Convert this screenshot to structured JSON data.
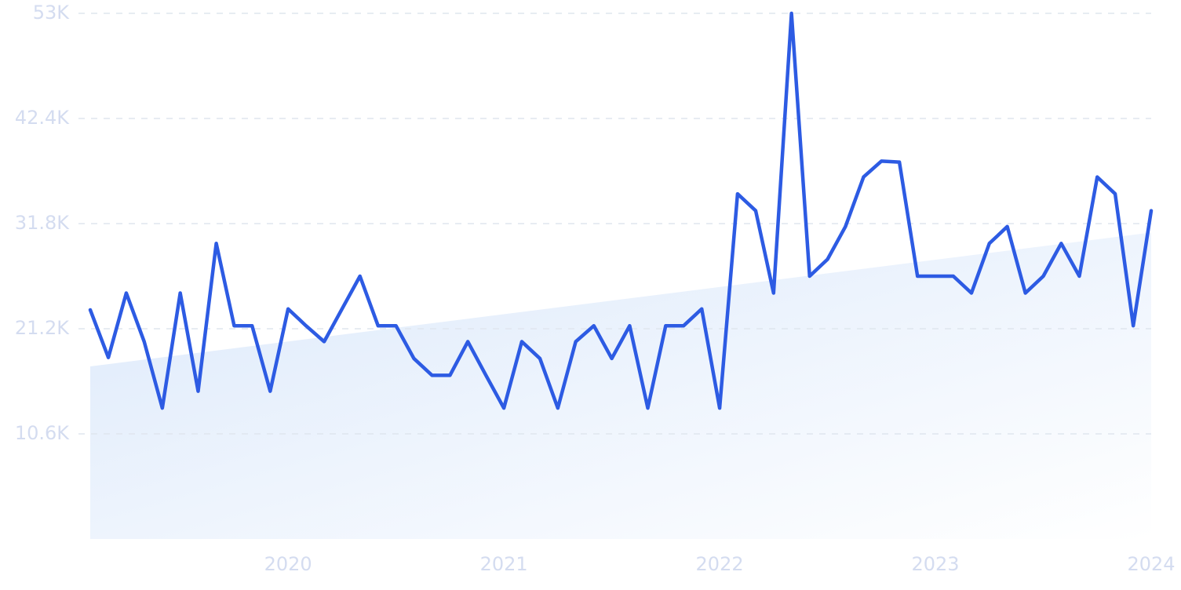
{
  "chart_data": {
    "type": "line",
    "x": [
      2019.083,
      2019.167,
      2019.25,
      2019.333,
      2019.417,
      2019.5,
      2019.583,
      2019.667,
      2019.75,
      2019.833,
      2019.917,
      2020.0,
      2020.083,
      2020.167,
      2020.25,
      2020.333,
      2020.417,
      2020.5,
      2020.583,
      2020.667,
      2020.75,
      2020.833,
      2020.917,
      2021.0,
      2021.083,
      2021.167,
      2021.25,
      2021.333,
      2021.417,
      2021.5,
      2021.583,
      2021.667,
      2021.75,
      2021.833,
      2021.917,
      2022.0,
      2022.083,
      2022.167,
      2022.25,
      2022.333,
      2022.417,
      2022.5,
      2022.583,
      2022.667,
      2022.75,
      2022.833,
      2022.917,
      2023.0,
      2023.083,
      2023.167,
      2023.25,
      2023.333,
      2023.417,
      2023.5,
      2023.583,
      2023.667,
      2023.75,
      2023.833,
      2023.917,
      2024.0
    ],
    "series": [
      {
        "color": "#2d5be3",
        "values": [
          23100,
          18300,
          24800,
          19900,
          13200,
          24800,
          14900,
          29800,
          21500,
          21500,
          14900,
          23200,
          21500,
          19900,
          23200,
          26500,
          21500,
          21500,
          18200,
          16500,
          16500,
          19900,
          16500,
          13200,
          19900,
          18200,
          13200,
          19900,
          21500,
          18200,
          21500,
          13200,
          21500,
          21500,
          23200,
          13200,
          34800,
          33100,
          24800,
          53000,
          26500,
          28200,
          31500,
          36500,
          38100,
          38000,
          26500,
          26500,
          26500,
          24800,
          29800,
          31500,
          24800,
          26500,
          29800,
          26500,
          36500,
          34800,
          21500,
          33100
        ]
      }
    ],
    "trend": {
      "color": "#dce9fb",
      "values": [
        17400,
        30900
      ]
    },
    "xlim": [
      2019.083,
      2024.0
    ],
    "ylim": [
      0,
      53000
    ],
    "xticks": [
      2020,
      2021,
      2022,
      2023,
      2024
    ],
    "yticks": [
      {
        "value": 10600,
        "label": "10.6K"
      },
      {
        "value": 21200,
        "label": "21.2K"
      },
      {
        "value": 31800,
        "label": "31.8K"
      },
      {
        "value": 42400,
        "label": "42.4K"
      },
      {
        "value": 53000,
        "label": "53K"
      }
    ],
    "grid": true
  }
}
